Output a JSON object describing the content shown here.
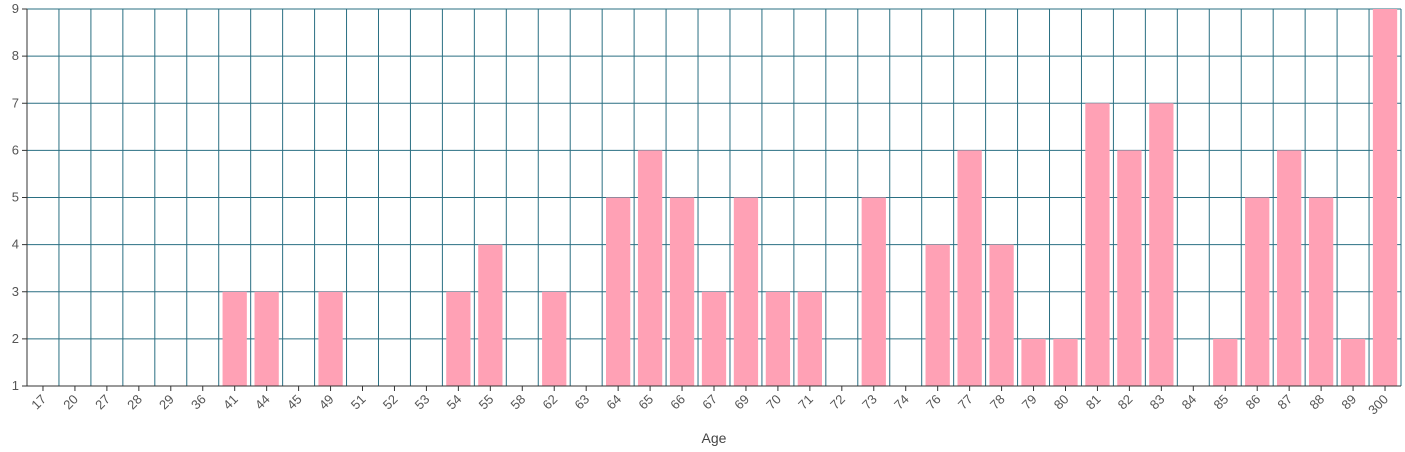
{
  "chart_data": {
    "type": "bar",
    "xlabel": "Age",
    "ylabel": "",
    "ylim": [
      1,
      9
    ],
    "yticks": [
      1,
      2,
      3,
      4,
      5,
      6,
      7,
      8,
      9
    ],
    "grid": true,
    "categories": [
      "17",
      "20",
      "27",
      "28",
      "29",
      "36",
      "41",
      "44",
      "45",
      "49",
      "51",
      "52",
      "53",
      "54",
      "55",
      "58",
      "62",
      "63",
      "64",
      "65",
      "66",
      "67",
      "69",
      "70",
      "71",
      "72",
      "73",
      "74",
      "76",
      "77",
      "78",
      "79",
      "80",
      "81",
      "82",
      "83",
      "84",
      "85",
      "86",
      "87",
      "88",
      "89",
      "300"
    ],
    "values": [
      1,
      1,
      1,
      1,
      1,
      1,
      3,
      3,
      1,
      3,
      1,
      1,
      1,
      3,
      4,
      1,
      3,
      1,
      5,
      6,
      5,
      3,
      5,
      3,
      3,
      1,
      5,
      1,
      4,
      6,
      4,
      2,
      2,
      7,
      6,
      7,
      1,
      2,
      5,
      6,
      5,
      2,
      9
    ],
    "bar_color": "#ffa1b5",
    "grid_color": "#2a6f82"
  }
}
